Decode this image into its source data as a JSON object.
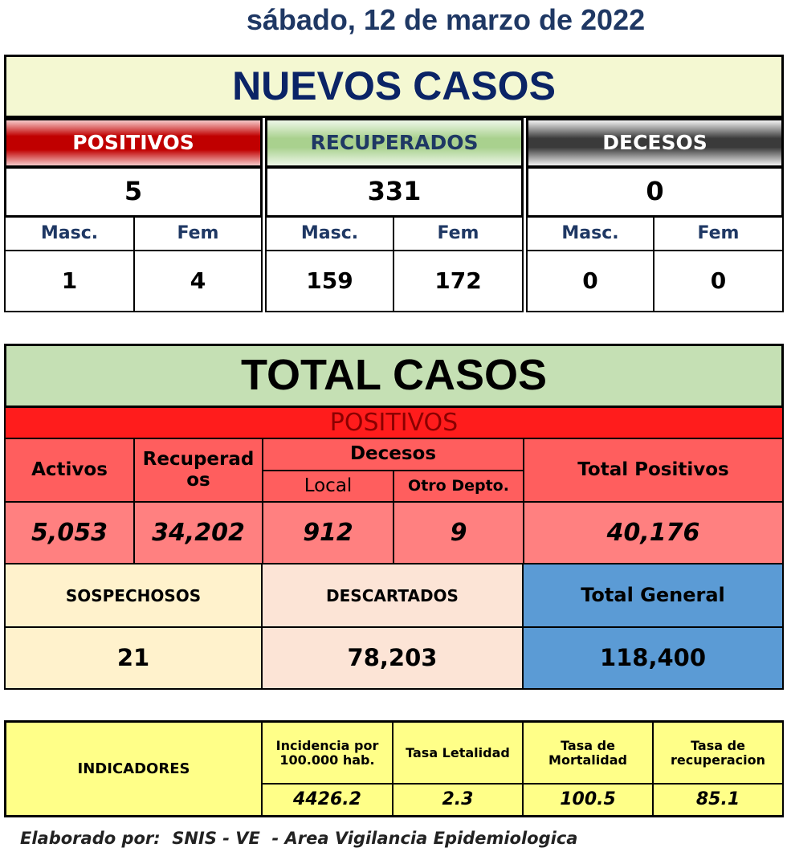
{
  "header": {
    "date": "sábado, 12 de marzo de 2022"
  },
  "nuevos_casos": {
    "title": "NUEVOS CASOS",
    "groups": [
      {
        "label": "POSITIVOS",
        "total": "5",
        "masc_label": "Masc.",
        "fem_label": "Fem",
        "masc": "1",
        "fem": "4"
      },
      {
        "label": "RECUPERADOS",
        "total": "331",
        "masc_label": "Masc.",
        "fem_label": "Fem",
        "masc": "159",
        "fem": "172"
      },
      {
        "label": "DECESOS",
        "total": "0",
        "masc_label": "Masc.",
        "fem_label": "Fem",
        "masc": "0",
        "fem": "0"
      }
    ]
  },
  "total_casos": {
    "title": "TOTAL CASOS",
    "positivos": {
      "label": "POSITIVOS",
      "headers": {
        "activos": "Activos",
        "recuperados": "Recuperados",
        "decesos": "Decesos",
        "local": "Local",
        "otro_depto": "Otro Depto.",
        "total_positivos": "Total Positivos"
      },
      "values": {
        "activos": "5,053",
        "recuperados": "34,202",
        "local": "912",
        "otro_depto": "9",
        "total_positivos": "40,176"
      }
    },
    "summary": [
      {
        "label": "SOSPECHOSOS",
        "value": "21"
      },
      {
        "label": "DESCARTADOS",
        "value": "78,203"
      },
      {
        "label": "Total General",
        "value": "118,400"
      }
    ]
  },
  "indicadores": {
    "label": "INDICADORES",
    "columns": [
      {
        "label": "Incidencia por 100.000 hab.",
        "value": "4426.2"
      },
      {
        "label": "Tasa Letalidad",
        "value": "2.3"
      },
      {
        "label": "Tasa de Mortalidad",
        "value": "100.5"
      },
      {
        "label": "Tasa de recuperacion",
        "value": "85.1"
      }
    ]
  },
  "footer": "Elaborado por:  SNIS - VE  - Area Vigilancia Epidemiologica"
}
